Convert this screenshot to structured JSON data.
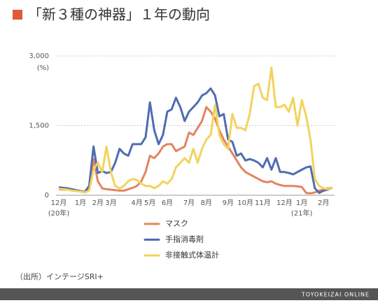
{
  "title": "「新３種の神器」１年の動向",
  "source": "（出所）インテージSRI+",
  "footer": "TOYOKEIZAI ONLINE",
  "chart_data": {
    "type": "line",
    "y_unit": "(%)",
    "annotations": [
      "(20年)",
      "(21年)"
    ],
    "categories": [
      "12月",
      null,
      null,
      null,
      null,
      "1月",
      null,
      null,
      null,
      "2月",
      null,
      null,
      "3月",
      null,
      null,
      null,
      null,
      null,
      "4月",
      null,
      null,
      "5月",
      null,
      null,
      null,
      "6月",
      null,
      null,
      null,
      null,
      "7月",
      null,
      null,
      null,
      "8月",
      null,
      null,
      null,
      null,
      "9月",
      null,
      null,
      null,
      "10月",
      null,
      null,
      null,
      "11月",
      null,
      null,
      null,
      null,
      "12月",
      null,
      null,
      null,
      "1月",
      null,
      null,
      null,
      null,
      "2月",
      null,
      null
    ],
    "series": [
      {
        "name": "マスク",
        "color": "#e4845f",
        "values": [
          130,
          120,
          120,
          110,
          100,
          90,
          80,
          200,
          780,
          300,
          150,
          130,
          120,
          110,
          100,
          100,
          130,
          160,
          200,
          300,
          500,
          850,
          800,
          900,
          1050,
          1100,
          1100,
          950,
          1000,
          1050,
          1350,
          1300,
          1450,
          1600,
          1900,
          1800,
          1650,
          1400,
          1200,
          1050,
          900,
          750,
          600,
          500,
          450,
          400,
          350,
          300,
          280,
          300,
          250,
          220,
          200,
          200,
          200,
          190,
          180,
          50,
          40,
          60,
          100,
          120,
          150,
          150
        ]
      },
      {
        "name": "手指消毒剤",
        "color": "#4e6db2",
        "values": [
          170,
          160,
          150,
          130,
          110,
          90,
          60,
          200,
          1050,
          480,
          520,
          480,
          500,
          700,
          1000,
          900,
          850,
          1100,
          1100,
          1100,
          1250,
          2000,
          1400,
          1100,
          1300,
          1800,
          1850,
          2100,
          1900,
          1600,
          1800,
          1900,
          2000,
          2150,
          2200,
          2300,
          2150,
          1700,
          1750,
          1200,
          1150,
          850,
          900,
          750,
          780,
          750,
          700,
          600,
          800,
          550,
          800,
          500,
          500,
          480,
          450,
          500,
          550,
          600,
          620,
          150,
          50,
          100,
          120,
          160
        ]
      },
      {
        "name": "非接触式体温計",
        "color": "#f2d35e",
        "values": [
          140,
          130,
          120,
          100,
          90,
          80,
          60,
          100,
          550,
          700,
          500,
          1050,
          500,
          200,
          150,
          200,
          300,
          350,
          330,
          250,
          200,
          200,
          150,
          200,
          300,
          250,
          350,
          600,
          700,
          800,
          700,
          1000,
          700,
          1000,
          1200,
          1300,
          1950,
          1300,
          1100,
          1000,
          1750,
          1450,
          1450,
          1400,
          1750,
          2350,
          2400,
          2100,
          2050,
          2750,
          1900,
          1900,
          1950,
          1800,
          2100,
          1500,
          2050,
          1700,
          1200,
          350,
          200,
          150,
          130,
          150
        ]
      }
    ],
    "ylim": [
      0,
      3000
    ],
    "yticks": [
      0,
      {
        "value": 1500,
        "label": "1,500"
      },
      {
        "value": 3000,
        "label": "3,000"
      }
    ],
    "grid": true
  }
}
